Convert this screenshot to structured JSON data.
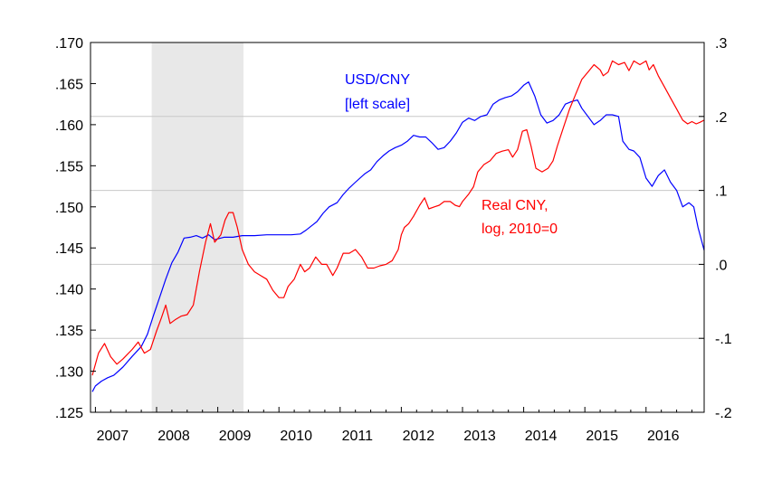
{
  "chart_data": {
    "type": "line",
    "title": "",
    "xlabel": "",
    "ylabel": "",
    "x_tick_labels": [
      "2007",
      "2008",
      "2009",
      "2010",
      "2011",
      "2012",
      "2013",
      "2014",
      "2015",
      "2016"
    ],
    "xlim": [
      2006.92,
      2016.95
    ],
    "left_axis": {
      "ylim": [
        0.125,
        0.17
      ],
      "tick_values": [
        0.125,
        0.13,
        0.135,
        0.14,
        0.145,
        0.15,
        0.155,
        0.16,
        0.165,
        0.17
      ],
      "tick_labels": [
        ".125",
        ".130",
        ".135",
        ".140",
        ".145",
        ".150",
        ".155",
        ".160",
        ".165",
        ".170"
      ]
    },
    "right_axis": {
      "ylim": [
        -0.2,
        0.3
      ],
      "tick_values": [
        -0.2,
        -0.1,
        0.0,
        0.1,
        0.2,
        0.3
      ],
      "tick_labels": [
        "-.2",
        "-.1",
        ".0",
        ".1",
        ".2",
        ".3"
      ]
    },
    "gridlines": "right-axis major ticks",
    "recession_shading": {
      "start": 2007.92,
      "end": 2009.42,
      "color": "#e8e8e8"
    },
    "series": [
      {
        "name": "USD/CNY",
        "axis": "left",
        "color": "#0000ff",
        "points": [
          [
            2006.95,
            0.1275
          ],
          [
            2007.0,
            0.1282
          ],
          [
            2007.1,
            0.1288
          ],
          [
            2007.2,
            0.1292
          ],
          [
            2007.3,
            0.1295
          ],
          [
            2007.45,
            0.1305
          ],
          [
            2007.6,
            0.1318
          ],
          [
            2007.75,
            0.133
          ],
          [
            2007.85,
            0.1345
          ],
          [
            2007.95,
            0.1368
          ],
          [
            2008.05,
            0.139
          ],
          [
            2008.15,
            0.1412
          ],
          [
            2008.25,
            0.1432
          ],
          [
            2008.35,
            0.1445
          ],
          [
            2008.45,
            0.1462
          ],
          [
            2008.55,
            0.1463
          ],
          [
            2008.65,
            0.1465
          ],
          [
            2008.75,
            0.1462
          ],
          [
            2008.85,
            0.1466
          ],
          [
            2008.95,
            0.146
          ],
          [
            2009.1,
            0.1463
          ],
          [
            2009.25,
            0.1463
          ],
          [
            2009.4,
            0.1465
          ],
          [
            2009.6,
            0.1465
          ],
          [
            2009.8,
            0.1466
          ],
          [
            2010.0,
            0.1466
          ],
          [
            2010.2,
            0.1466
          ],
          [
            2010.35,
            0.1467
          ],
          [
            2010.45,
            0.1472
          ],
          [
            2010.55,
            0.1478
          ],
          [
            2010.62,
            0.1482
          ],
          [
            2010.72,
            0.1492
          ],
          [
            2010.82,
            0.15
          ],
          [
            2010.95,
            0.1505
          ],
          [
            2011.05,
            0.1515
          ],
          [
            2011.15,
            0.1523
          ],
          [
            2011.25,
            0.153
          ],
          [
            2011.4,
            0.154
          ],
          [
            2011.5,
            0.1545
          ],
          [
            2011.6,
            0.1555
          ],
          [
            2011.7,
            0.1562
          ],
          [
            2011.8,
            0.1568
          ],
          [
            2011.9,
            0.1572
          ],
          [
            2012.0,
            0.1575
          ],
          [
            2012.1,
            0.158
          ],
          [
            2012.2,
            0.1587
          ],
          [
            2012.3,
            0.1585
          ],
          [
            2012.4,
            0.1585
          ],
          [
            2012.5,
            0.1578
          ],
          [
            2012.6,
            0.157
          ],
          [
            2012.7,
            0.1572
          ],
          [
            2012.8,
            0.158
          ],
          [
            2012.9,
            0.159
          ],
          [
            2013.0,
            0.1603
          ],
          [
            2013.1,
            0.1608
          ],
          [
            2013.2,
            0.1605
          ],
          [
            2013.3,
            0.161
          ],
          [
            2013.4,
            0.1612
          ],
          [
            2013.5,
            0.1625
          ],
          [
            2013.6,
            0.163
          ],
          [
            2013.7,
            0.1633
          ],
          [
            2013.8,
            0.1635
          ],
          [
            2013.9,
            0.164
          ],
          [
            2014.0,
            0.1648
          ],
          [
            2014.08,
            0.1652
          ],
          [
            2014.18,
            0.1635
          ],
          [
            2014.28,
            0.1612
          ],
          [
            2014.38,
            0.1602
          ],
          [
            2014.48,
            0.1605
          ],
          [
            2014.58,
            0.1612
          ],
          [
            2014.68,
            0.1625
          ],
          [
            2014.78,
            0.1628
          ],
          [
            2014.88,
            0.163
          ],
          [
            2014.95,
            0.162
          ],
          [
            2015.05,
            0.161
          ],
          [
            2015.15,
            0.16
          ],
          [
            2015.25,
            0.1605
          ],
          [
            2015.35,
            0.1612
          ],
          [
            2015.45,
            0.1612
          ],
          [
            2015.55,
            0.161
          ],
          [
            2015.62,
            0.158
          ],
          [
            2015.72,
            0.157
          ],
          [
            2015.8,
            0.1568
          ],
          [
            2015.9,
            0.156
          ],
          [
            2016.0,
            0.1535
          ],
          [
            2016.1,
            0.1525
          ],
          [
            2016.2,
            0.1538
          ],
          [
            2016.3,
            0.1545
          ],
          [
            2016.4,
            0.153
          ],
          [
            2016.5,
            0.152
          ],
          [
            2016.6,
            0.15
          ],
          [
            2016.7,
            0.1505
          ],
          [
            2016.78,
            0.15
          ],
          [
            2016.85,
            0.1475
          ],
          [
            2016.95,
            0.1447
          ]
        ]
      },
      {
        "name": "Real CNY, log, 2010=0",
        "axis": "right",
        "color": "#ff0000",
        "points": [
          [
            2006.95,
            -0.15
          ],
          [
            2007.05,
            -0.12
          ],
          [
            2007.15,
            -0.107
          ],
          [
            2007.25,
            -0.125
          ],
          [
            2007.35,
            -0.135
          ],
          [
            2007.45,
            -0.128
          ],
          [
            2007.6,
            -0.115
          ],
          [
            2007.7,
            -0.105
          ],
          [
            2007.8,
            -0.12
          ],
          [
            2007.9,
            -0.115
          ],
          [
            2008.0,
            -0.09
          ],
          [
            2008.08,
            -0.072
          ],
          [
            2008.15,
            -0.055
          ],
          [
            2008.22,
            -0.08
          ],
          [
            2008.3,
            -0.075
          ],
          [
            2008.4,
            -0.07
          ],
          [
            2008.5,
            -0.068
          ],
          [
            2008.6,
            -0.055
          ],
          [
            2008.7,
            -0.01
          ],
          [
            2008.8,
            0.03
          ],
          [
            2008.88,
            0.055
          ],
          [
            2008.95,
            0.03
          ],
          [
            2009.05,
            0.04
          ],
          [
            2009.12,
            0.06
          ],
          [
            2009.18,
            0.07
          ],
          [
            2009.25,
            0.07
          ],
          [
            2009.32,
            0.05
          ],
          [
            2009.4,
            0.02
          ],
          [
            2009.5,
            0.0
          ],
          [
            2009.6,
            -0.01
          ],
          [
            2009.7,
            -0.015
          ],
          [
            2009.8,
            -0.02
          ],
          [
            2009.9,
            -0.035
          ],
          [
            2010.0,
            -0.045
          ],
          [
            2010.08,
            -0.045
          ],
          [
            2010.15,
            -0.03
          ],
          [
            2010.25,
            -0.02
          ],
          [
            2010.35,
            0.0
          ],
          [
            2010.42,
            -0.01
          ],
          [
            2010.5,
            -0.005
          ],
          [
            2010.6,
            0.01
          ],
          [
            2010.7,
            0.0
          ],
          [
            2010.78,
            0.0
          ],
          [
            2010.88,
            -0.015
          ],
          [
            2010.95,
            -0.005
          ],
          [
            2011.05,
            0.015
          ],
          [
            2011.15,
            0.015
          ],
          [
            2011.25,
            0.02
          ],
          [
            2011.35,
            0.01
          ],
          [
            2011.45,
            -0.005
          ],
          [
            2011.55,
            -0.005
          ],
          [
            2011.65,
            -0.002
          ],
          [
            2011.75,
            0.0
          ],
          [
            2011.85,
            0.005
          ],
          [
            2011.95,
            0.02
          ],
          [
            2012.0,
            0.04
          ],
          [
            2012.05,
            0.05
          ],
          [
            2012.12,
            0.055
          ],
          [
            2012.2,
            0.065
          ],
          [
            2012.3,
            0.08
          ],
          [
            2012.38,
            0.09
          ],
          [
            2012.45,
            0.075
          ],
          [
            2012.55,
            0.078
          ],
          [
            2012.62,
            0.08
          ],
          [
            2012.7,
            0.085
          ],
          [
            2012.8,
            0.085
          ],
          [
            2012.88,
            0.08
          ],
          [
            2012.95,
            0.078
          ],
          [
            2013.0,
            0.085
          ],
          [
            2013.1,
            0.095
          ],
          [
            2013.18,
            0.105
          ],
          [
            2013.25,
            0.125
          ],
          [
            2013.35,
            0.135
          ],
          [
            2013.45,
            0.14
          ],
          [
            2013.55,
            0.15
          ],
          [
            2013.65,
            0.153
          ],
          [
            2013.75,
            0.155
          ],
          [
            2013.82,
            0.145
          ],
          [
            2013.9,
            0.155
          ],
          [
            2013.98,
            0.18
          ],
          [
            2014.05,
            0.182
          ],
          [
            2014.12,
            0.16
          ],
          [
            2014.2,
            0.13
          ],
          [
            2014.3,
            0.125
          ],
          [
            2014.4,
            0.13
          ],
          [
            2014.48,
            0.14
          ],
          [
            2014.55,
            0.16
          ],
          [
            2014.65,
            0.185
          ],
          [
            2014.75,
            0.21
          ],
          [
            2014.85,
            0.23
          ],
          [
            2014.95,
            0.25
          ],
          [
            2015.05,
            0.26
          ],
          [
            2015.15,
            0.27
          ],
          [
            2015.25,
            0.263
          ],
          [
            2015.3,
            0.255
          ],
          [
            2015.38,
            0.26
          ],
          [
            2015.45,
            0.275
          ],
          [
            2015.55,
            0.27
          ],
          [
            2015.65,
            0.273
          ],
          [
            2015.72,
            0.262
          ],
          [
            2015.8,
            0.275
          ],
          [
            2015.9,
            0.27
          ],
          [
            2016.0,
            0.275
          ],
          [
            2016.05,
            0.263
          ],
          [
            2016.12,
            0.27
          ],
          [
            2016.2,
            0.255
          ],
          [
            2016.3,
            0.24
          ],
          [
            2016.4,
            0.225
          ],
          [
            2016.5,
            0.21
          ],
          [
            2016.6,
            0.195
          ],
          [
            2016.68,
            0.19
          ],
          [
            2016.75,
            0.193
          ],
          [
            2016.82,
            0.19
          ],
          [
            2016.88,
            0.192
          ],
          [
            2016.95,
            0.195
          ]
        ]
      }
    ],
    "annotations": [
      {
        "lines": [
          "USD/CNY",
          "[left scale]"
        ],
        "color": "#0000ff"
      },
      {
        "lines": [
          "Real CNY,",
          "log, 2010=0"
        ],
        "color": "#ff0000"
      }
    ]
  }
}
